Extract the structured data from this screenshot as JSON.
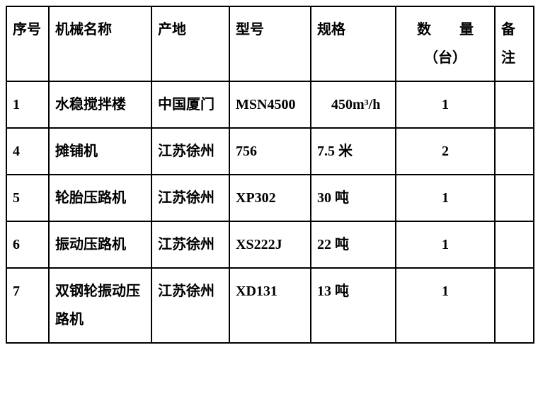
{
  "table": {
    "columns": [
      {
        "key": "seq",
        "label": "序号",
        "class": "col-seq"
      },
      {
        "key": "name",
        "label": "机械名称",
        "class": "col-name"
      },
      {
        "key": "origin",
        "label": "产地",
        "class": "col-orig"
      },
      {
        "key": "model",
        "label": "型号",
        "class": "col-model"
      },
      {
        "key": "spec",
        "label": "规格",
        "class": "col-spec"
      },
      {
        "key": "qty",
        "label": "数　　量（台）",
        "class": "col-qty"
      },
      {
        "key": "remark",
        "label": "备注",
        "class": "col-rem"
      }
    ],
    "rows": [
      {
        "seq": "1",
        "name": "水稳搅拌楼",
        "origin": "中国厦门",
        "model": "MSN4500",
        "spec": "　450m³/h",
        "qty": "1",
        "remark": ""
      },
      {
        "seq": "4",
        "name": "摊铺机",
        "origin": "江苏徐州",
        "model": "756",
        "spec": "7.5 米",
        "qty": "2",
        "remark": ""
      },
      {
        "seq": "5",
        "name": "轮胎压路机",
        "origin": "江苏徐州",
        "model": "XP302",
        "spec": "30 吨",
        "qty": "1",
        "remark": ""
      },
      {
        "seq": "6",
        "name": "振动压路机",
        "origin": "江苏徐州",
        "model": "XS222J",
        "spec": "22 吨",
        "qty": "1",
        "remark": ""
      },
      {
        "seq": "7",
        "name": "双钢轮振动压路机",
        "origin": "江苏徐州",
        "model": "XD131",
        "spec": "13 吨",
        "qty": "1",
        "remark": ""
      }
    ],
    "border_color": "#000000",
    "text_color": "#000000",
    "background_color": "#ffffff",
    "font_family": "SimSun",
    "font_size_pt": 15,
    "font_weight": "bold"
  }
}
